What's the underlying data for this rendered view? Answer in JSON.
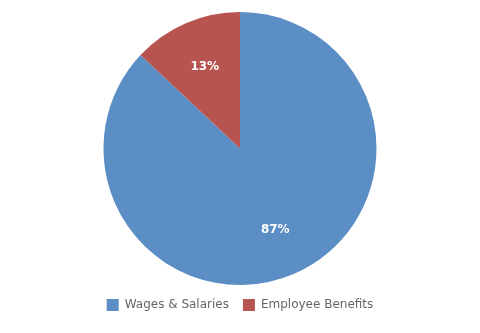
{
  "chart_data": {
    "type": "pie",
    "categories": [
      "Wages & Salaries",
      "Employee Benefits"
    ],
    "values": [
      87,
      13
    ],
    "value_labels": [
      "87%",
      "13%"
    ],
    "colors": [
      "#5b8ec4",
      "#b85450"
    ],
    "data_labels": true,
    "legend": "bottom"
  }
}
